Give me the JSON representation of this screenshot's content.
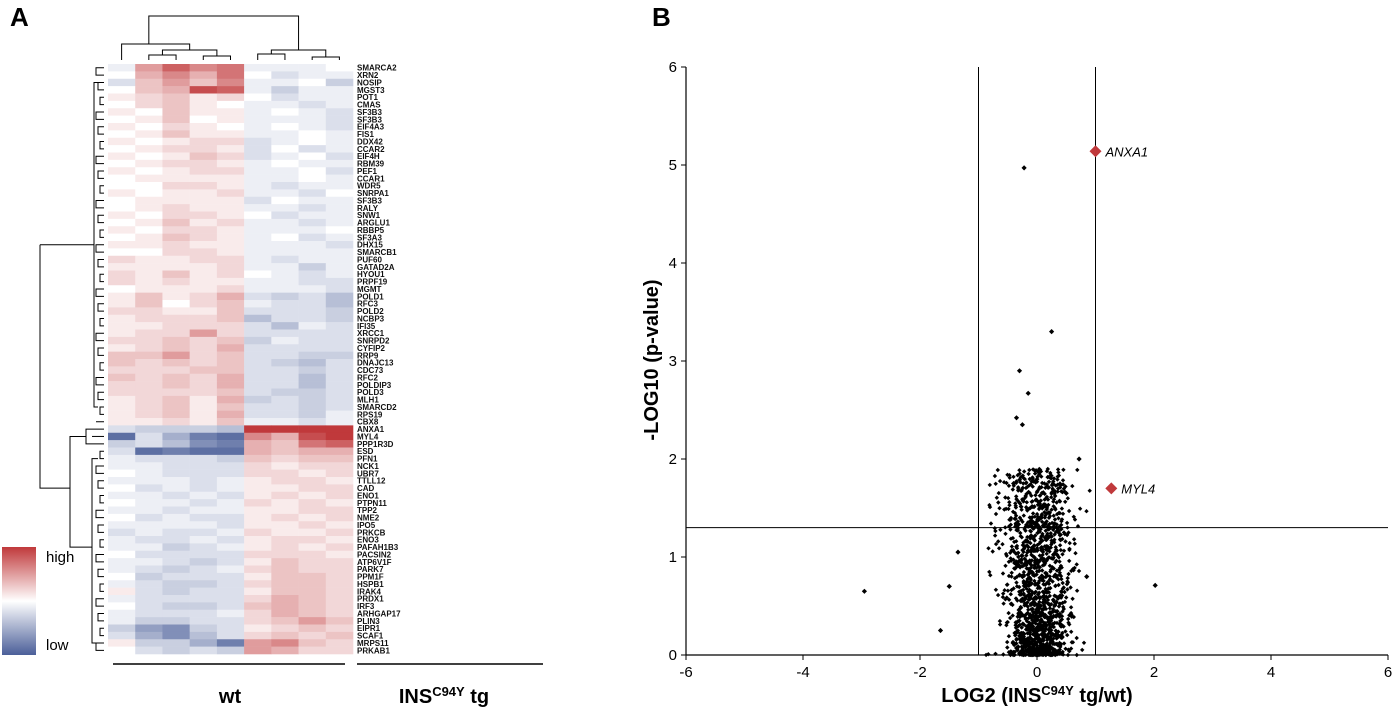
{
  "chart_data": [
    {
      "type": "heatmap",
      "panel_label": "A",
      "genes": [
        "SMARCA2",
        "XRN2",
        "NOSIP",
        "MGST3",
        "POT1",
        "CMAS",
        "SF3B3",
        "SF3B3",
        "EIF4A3",
        "FIS1",
        "DDX42",
        "CCAR2",
        "EIF4H",
        "RBM39",
        "PEF1",
        "CCAR1",
        "WDR5",
        "SNRPA1",
        "SF3B3",
        "RALY",
        "SNW1",
        "ARGLU1",
        "RBBP5",
        "SF3A3",
        "DHX15",
        "SMARCB1",
        "PUF60",
        "GATAD2A",
        "HYOU1",
        "PRPF19",
        "MGMT",
        "POLD1",
        "RFC3",
        "POLD2",
        "NCBP3",
        "IFI35",
        "XRCC1",
        "SNRPD2",
        "CYFIP2",
        "RRP9",
        "DNAJC13",
        "CDC73",
        "RFC2",
        "POLDIP3",
        "POLD3",
        "MLH1",
        "SMARCD2",
        "RPS19",
        "CBX8",
        "ANXA1",
        "MYL4",
        "PPP1R3D",
        "ESD",
        "PFN1",
        "NCK1",
        "UBR7",
        "TTLL12",
        "CAD",
        "ENO1",
        "PTPN11",
        "TPP2",
        "NME2",
        "IPO5",
        "PRKCB",
        "ENO3",
        "PAFAH1B3",
        "PACSIN2",
        "ATP6V1F",
        "PARK7",
        "PPM1F",
        "HSPB1",
        "IRAK4",
        "PRDX1",
        "IRF3",
        "ARHGAP17",
        "PLIN3",
        "EIPR1",
        "SCAF1",
        "MRPS11",
        "PRKAB1"
      ],
      "group_labels": {
        "wt": "wt",
        "tg_main": "INS",
        "tg_sup": "C94Y",
        "tg_suffix": " tg"
      },
      "group_sizes": [
        5,
        4
      ],
      "legend": {
        "high": "high",
        "low": "low"
      },
      "colors": {
        "high": "#c0393b",
        "mid": "#ffffff",
        "low": "#4b5f99"
      },
      "value_range": [
        -1,
        1
      ],
      "rows": [
        [
          -0.1,
          0.5,
          0.8,
          0.6,
          0.7,
          -0.1,
          -0.1,
          -0.1,
          0.0
        ],
        [
          0.0,
          0.4,
          0.6,
          0.4,
          0.7,
          0.0,
          -0.2,
          -0.1,
          -0.1
        ],
        [
          -0.2,
          0.3,
          0.5,
          0.3,
          0.6,
          -0.1,
          -0.1,
          0.0,
          -0.3
        ],
        [
          0.0,
          0.3,
          0.4,
          0.9,
          0.8,
          -0.1,
          -0.3,
          -0.1,
          -0.1
        ],
        [
          0.1,
          0.2,
          0.3,
          0.1,
          0.2,
          0.0,
          -0.2,
          -0.1,
          -0.1
        ],
        [
          0.0,
          0.2,
          0.3,
          0.1,
          0.0,
          -0.1,
          -0.1,
          -0.2,
          -0.1
        ],
        [
          0.1,
          0.0,
          0.3,
          0.1,
          0.1,
          -0.1,
          0.0,
          -0.1,
          -0.2
        ],
        [
          0.0,
          0.1,
          0.3,
          0.0,
          0.1,
          -0.1,
          -0.1,
          -0.1,
          -0.2
        ],
        [
          0.1,
          0.0,
          0.2,
          0.1,
          0.0,
          -0.1,
          0.0,
          -0.1,
          -0.2
        ],
        [
          0.0,
          0.1,
          0.3,
          0.1,
          0.1,
          -0.1,
          -0.1,
          0.0,
          -0.1
        ],
        [
          0.1,
          0.0,
          0.1,
          0.2,
          0.2,
          -0.2,
          -0.1,
          0.0,
          -0.1
        ],
        [
          0.0,
          0.1,
          0.2,
          0.2,
          0.1,
          -0.2,
          0.0,
          -0.2,
          -0.1
        ],
        [
          0.1,
          0.0,
          0.1,
          0.3,
          0.2,
          -0.2,
          -0.1,
          0.0,
          -0.2
        ],
        [
          0.0,
          0.1,
          0.2,
          0.2,
          0.1,
          -0.1,
          0.0,
          -0.1,
          -0.1
        ],
        [
          0.1,
          0.0,
          0.1,
          0.2,
          0.2,
          -0.1,
          -0.1,
          0.0,
          -0.2
        ],
        [
          0.0,
          0.1,
          0.1,
          0.1,
          0.1,
          -0.1,
          -0.1,
          0.0,
          -0.1
        ],
        [
          0.0,
          0.0,
          0.2,
          0.2,
          0.1,
          -0.1,
          -0.2,
          -0.1,
          -0.1
        ],
        [
          0.1,
          0.0,
          0.1,
          0.1,
          0.2,
          -0.1,
          -0.1,
          -0.2,
          0.0
        ],
        [
          0.0,
          0.1,
          0.1,
          0.1,
          0.1,
          -0.2,
          0.0,
          -0.1,
          -0.1
        ],
        [
          0.0,
          0.1,
          0.2,
          0.1,
          0.1,
          -0.1,
          -0.1,
          -0.2,
          -0.1
        ],
        [
          0.1,
          0.0,
          0.2,
          0.2,
          0.1,
          0.0,
          -0.2,
          -0.1,
          -0.1
        ],
        [
          0.0,
          0.1,
          0.3,
          0.1,
          0.2,
          -0.1,
          -0.1,
          -0.2,
          -0.1
        ],
        [
          0.1,
          0.0,
          0.2,
          0.2,
          0.1,
          -0.1,
          -0.1,
          -0.1,
          0.0
        ],
        [
          0.0,
          0.1,
          0.3,
          0.2,
          0.1,
          -0.1,
          0.0,
          -0.2,
          -0.1
        ],
        [
          0.1,
          0.1,
          0.2,
          0.1,
          0.1,
          -0.1,
          -0.1,
          -0.1,
          -0.2
        ],
        [
          0.0,
          0.0,
          0.2,
          0.2,
          0.1,
          -0.1,
          -0.1,
          -0.1,
          -0.1
        ],
        [
          0.2,
          0.1,
          0.1,
          0.2,
          0.2,
          -0.1,
          -0.2,
          -0.1,
          -0.1
        ],
        [
          0.1,
          0.1,
          0.1,
          0.1,
          0.2,
          -0.1,
          -0.1,
          -0.3,
          -0.1
        ],
        [
          0.2,
          0.1,
          0.3,
          0.1,
          0.2,
          0.0,
          -0.1,
          -0.2,
          -0.1
        ],
        [
          0.2,
          0.1,
          0.2,
          0.1,
          0.1,
          -0.1,
          -0.1,
          -0.2,
          -0.2
        ],
        [
          0.0,
          0.1,
          0.1,
          0.1,
          0.2,
          -0.1,
          -0.1,
          -0.1,
          -0.2
        ],
        [
          0.1,
          0.3,
          0.1,
          0.2,
          0.4,
          -0.2,
          -0.3,
          -0.2,
          -0.4
        ],
        [
          0.1,
          0.3,
          0.0,
          0.2,
          0.3,
          -0.1,
          -0.2,
          -0.2,
          -0.4
        ],
        [
          0.2,
          0.2,
          0.1,
          0.1,
          0.3,
          -0.2,
          -0.2,
          -0.2,
          -0.3
        ],
        [
          0.1,
          0.2,
          0.2,
          0.2,
          0.3,
          -0.4,
          -0.2,
          -0.2,
          -0.3
        ],
        [
          0.1,
          0.1,
          0.2,
          0.2,
          0.2,
          -0.2,
          -0.4,
          -0.1,
          -0.2
        ],
        [
          0.1,
          0.2,
          0.2,
          0.5,
          0.2,
          -0.2,
          -0.2,
          -0.2,
          -0.2
        ],
        [
          0.2,
          0.2,
          0.3,
          0.2,
          0.3,
          -0.3,
          -0.1,
          -0.2,
          -0.2
        ],
        [
          0.1,
          0.2,
          0.3,
          0.2,
          0.4,
          -0.2,
          -0.2,
          -0.2,
          -0.2
        ],
        [
          0.3,
          0.3,
          0.5,
          0.2,
          0.3,
          -0.2,
          -0.2,
          -0.3,
          -0.3
        ],
        [
          0.3,
          0.2,
          0.3,
          0.2,
          0.3,
          -0.2,
          -0.3,
          -0.4,
          -0.2
        ],
        [
          0.2,
          0.2,
          0.2,
          0.3,
          0.3,
          -0.2,
          -0.2,
          -0.3,
          -0.2
        ],
        [
          0.3,
          0.2,
          0.3,
          0.2,
          0.4,
          -0.2,
          -0.2,
          -0.4,
          -0.2
        ],
        [
          0.2,
          0.2,
          0.3,
          0.2,
          0.4,
          -0.2,
          -0.2,
          -0.4,
          -0.2
        ],
        [
          0.2,
          0.2,
          0.2,
          0.2,
          0.3,
          -0.2,
          -0.3,
          -0.3,
          -0.2
        ],
        [
          0.1,
          0.2,
          0.3,
          0.1,
          0.4,
          -0.3,
          -0.2,
          -0.3,
          -0.2
        ],
        [
          0.1,
          0.2,
          0.3,
          0.1,
          0.3,
          -0.2,
          -0.2,
          -0.3,
          -0.2
        ],
        [
          0.1,
          0.2,
          0.3,
          0.1,
          0.4,
          -0.2,
          -0.2,
          -0.3,
          -0.1
        ],
        [
          0.1,
          0.1,
          0.2,
          0.1,
          0.3,
          -0.1,
          -0.1,
          -0.2,
          -0.1
        ],
        [
          -0.2,
          -0.3,
          -0.3,
          -0.3,
          -0.4,
          1.0,
          1.0,
          1.0,
          1.0
        ],
        [
          -0.9,
          -0.2,
          -0.5,
          -0.8,
          -0.9,
          0.6,
          0.4,
          0.9,
          1.0
        ],
        [
          -0.3,
          -0.2,
          -0.4,
          -0.7,
          -0.8,
          0.4,
          0.3,
          0.7,
          0.8
        ],
        [
          -0.2,
          -0.9,
          -0.8,
          -0.9,
          -0.9,
          0.4,
          0.3,
          0.4,
          0.4
        ],
        [
          -0.1,
          -0.2,
          -0.2,
          -0.2,
          -0.3,
          0.3,
          0.2,
          0.3,
          0.3
        ],
        [
          -0.1,
          -0.1,
          -0.2,
          -0.2,
          -0.2,
          0.2,
          0.1,
          0.2,
          0.2
        ],
        [
          0.0,
          -0.1,
          -0.2,
          -0.2,
          -0.2,
          0.2,
          0.2,
          0.1,
          0.2
        ],
        [
          -0.1,
          -0.1,
          -0.1,
          -0.2,
          -0.1,
          0.1,
          0.2,
          0.2,
          0.1
        ],
        [
          0.0,
          -0.2,
          -0.1,
          -0.2,
          -0.1,
          0.1,
          0.1,
          0.2,
          0.2
        ],
        [
          -0.1,
          -0.1,
          -0.2,
          -0.1,
          -0.2,
          0.1,
          0.2,
          0.1,
          0.2
        ],
        [
          0.0,
          -0.1,
          -0.1,
          -0.2,
          -0.1,
          0.2,
          0.1,
          0.2,
          0.1
        ],
        [
          -0.1,
          -0.1,
          -0.2,
          -0.1,
          -0.1,
          0.1,
          0.1,
          0.2,
          0.2
        ],
        [
          0.0,
          -0.2,
          -0.1,
          -0.2,
          -0.2,
          0.1,
          0.2,
          0.1,
          0.2
        ],
        [
          -0.1,
          -0.1,
          -0.1,
          -0.1,
          -0.2,
          0.1,
          0.1,
          0.2,
          0.1
        ],
        [
          -0.2,
          -0.1,
          -0.2,
          -0.2,
          -0.1,
          0.2,
          0.1,
          0.1,
          0.2
        ],
        [
          -0.1,
          -0.2,
          -0.2,
          -0.1,
          -0.2,
          0.1,
          0.2,
          0.2,
          0.1
        ],
        [
          -0.1,
          -0.1,
          -0.3,
          -0.2,
          -0.1,
          0.1,
          0.2,
          0.1,
          0.2
        ],
        [
          0.0,
          -0.2,
          -0.2,
          -0.2,
          -0.2,
          0.2,
          0.2,
          0.2,
          0.1
        ],
        [
          -0.1,
          -0.1,
          -0.2,
          -0.3,
          -0.2,
          0.1,
          0.3,
          0.2,
          0.2
        ],
        [
          -0.1,
          -0.2,
          -0.3,
          -0.2,
          -0.1,
          0.2,
          0.3,
          0.2,
          0.2
        ],
        [
          0.0,
          -0.3,
          -0.2,
          -0.2,
          -0.2,
          0.1,
          0.3,
          0.3,
          0.2
        ],
        [
          -0.1,
          -0.2,
          -0.3,
          -0.3,
          -0.2,
          0.2,
          0.3,
          0.3,
          0.2
        ],
        [
          0.1,
          -0.2,
          -0.3,
          -0.2,
          -0.2,
          0.1,
          0.3,
          0.3,
          0.2
        ],
        [
          -0.1,
          -0.2,
          -0.2,
          -0.2,
          -0.2,
          0.2,
          0.4,
          0.3,
          0.2
        ],
        [
          0.0,
          -0.2,
          -0.3,
          -0.3,
          -0.2,
          0.3,
          0.4,
          0.3,
          0.2
        ],
        [
          -0.1,
          -0.2,
          -0.2,
          -0.2,
          -0.1,
          0.2,
          0.4,
          0.3,
          0.2
        ],
        [
          -0.1,
          -0.3,
          -0.3,
          -0.2,
          -0.2,
          0.2,
          0.3,
          0.5,
          0.3
        ],
        [
          -0.3,
          -0.6,
          -0.7,
          -0.3,
          -0.2,
          0.1,
          0.2,
          0.3,
          0.2
        ],
        [
          -0.2,
          -0.5,
          -0.7,
          -0.4,
          -0.2,
          0.2,
          0.3,
          0.2,
          0.3
        ],
        [
          0.1,
          -0.3,
          -0.3,
          -0.5,
          -0.8,
          0.5,
          0.6,
          0.3,
          0.2
        ],
        [
          0.0,
          -0.2,
          -0.3,
          -0.2,
          -0.3,
          0.5,
          0.4,
          0.2,
          0.2
        ]
      ]
    },
    {
      "type": "scatter",
      "panel_label": "B",
      "xlabel_main": "LOG2 (INS",
      "xlabel_sup": "C94Y",
      "xlabel_end": " tg/wt)",
      "ylabel": "-LOG10 (p-value)",
      "xlim": [
        -6,
        6
      ],
      "ylim": [
        0,
        6
      ],
      "xticks": [
        -6,
        -4,
        -2,
        0,
        2,
        4,
        6
      ],
      "yticks": [
        0,
        1,
        2,
        3,
        4,
        5,
        6
      ],
      "thresholds": {
        "x": [
          -1,
          1
        ],
        "y": 1.3
      },
      "colors": {
        "point": "#000000",
        "highlight": "#c0393b"
      },
      "highlighted": [
        {
          "label": "ANXA1",
          "x": 1.0,
          "y": 5.14
        },
        {
          "label": "MYL4",
          "x": 1.27,
          "y": 1.7
        }
      ],
      "notable_points": [
        {
          "x": -0.22,
          "y": 4.97
        },
        {
          "x": 0.25,
          "y": 3.3
        },
        {
          "x": -0.3,
          "y": 2.9
        },
        {
          "x": -0.15,
          "y": 2.67
        },
        {
          "x": -0.35,
          "y": 2.42
        },
        {
          "x": -0.25,
          "y": 2.35
        },
        {
          "x": 0.72,
          "y": 2.0
        },
        {
          "x": 2.02,
          "y": 0.71
        },
        {
          "x": -2.95,
          "y": 0.65
        },
        {
          "x": -1.65,
          "y": 0.25
        },
        {
          "x": -1.35,
          "y": 1.05
        },
        {
          "x": -1.5,
          "y": 0.7
        },
        {
          "x": 0.0,
          "y": 0.0
        },
        {
          "x": -0.4,
          "y": 1.75
        },
        {
          "x": 0.5,
          "y": 1.65
        },
        {
          "x": 0.85,
          "y": 0.8
        }
      ],
      "cloud": {
        "count": 1500,
        "x_sd": 0.25,
        "max_y": 1.9
      }
    }
  ]
}
